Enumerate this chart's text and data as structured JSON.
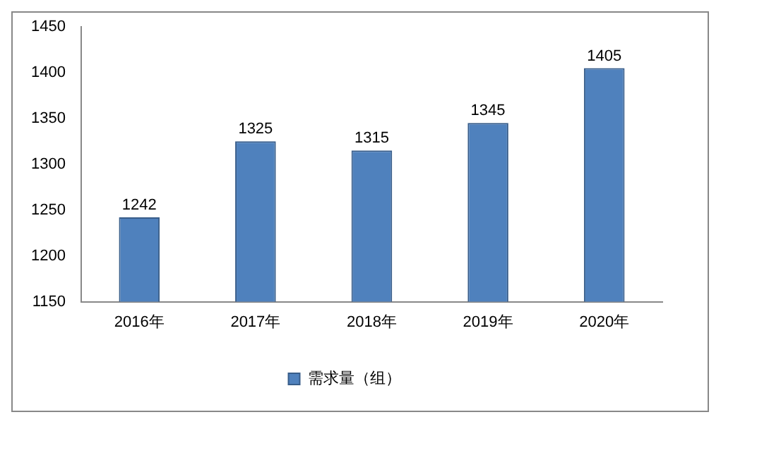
{
  "chart_data": {
    "type": "bar",
    "categories": [
      "2016年",
      "2017年",
      "2018年",
      "2019年",
      "2020年"
    ],
    "series": [
      {
        "name": "需求量（组）",
        "color": "#4f81bd",
        "values": [
          1242,
          1325,
          1315,
          1345,
          1405
        ]
      }
    ],
    "ylim": [
      1150,
      1450
    ],
    "yticks": [
      1150,
      1200,
      1250,
      1300,
      1350,
      1400,
      1450
    ],
    "grid": false,
    "legend": "bottom",
    "data_labels": true
  }
}
